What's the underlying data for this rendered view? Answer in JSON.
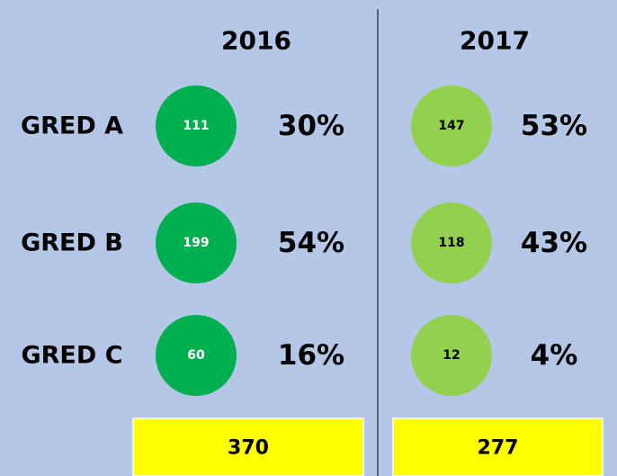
{
  "grades": [
    "GRED A",
    "GRED B",
    "GRED C"
  ],
  "years": [
    {
      "label": "2016",
      "rows": [
        {
          "count": "111",
          "percent": "30%"
        },
        {
          "count": "199",
          "percent": "54%"
        },
        {
          "count": "60",
          "percent": "16%"
        }
      ],
      "total": "370"
    },
    {
      "label": "2017",
      "rows": [
        {
          "count": "147",
          "percent": "53%"
        },
        {
          "count": "118",
          "percent": "43%"
        },
        {
          "count": "12",
          "percent": "4%"
        }
      ],
      "total": "277"
    }
  ]
}
